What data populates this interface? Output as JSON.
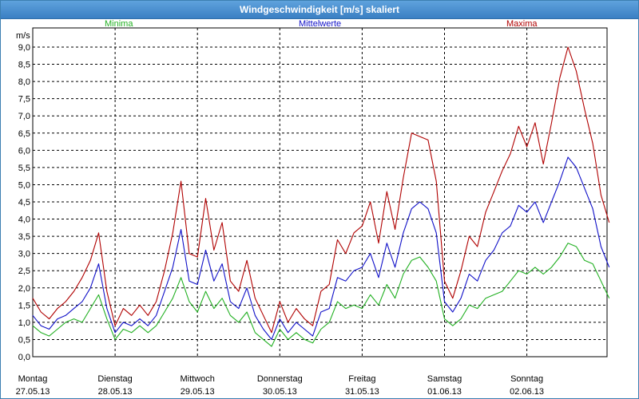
{
  "window": {
    "title": "Windgeschwindigkeit [m/s] skaliert"
  },
  "colors": {
    "minima": "#22b022",
    "mittelwerte": "#1010c8",
    "maxima": "#b00000",
    "grid": "#000000",
    "text": "#000000"
  },
  "chart_data": {
    "type": "line",
    "ylabel": "m/s",
    "ylim": [
      0,
      9.0
    ],
    "y_ticks": [
      "0,0",
      "0,5",
      "1,0",
      "1,5",
      "2,0",
      "2,5",
      "3,0",
      "3,5",
      "4,0",
      "4,5",
      "5,0",
      "5,5",
      "6,0",
      "6,5",
      "7,0",
      "7,5",
      "8,0",
      "8,5",
      "9,0"
    ],
    "x_days": [
      {
        "day": "Montag",
        "date": "27.05.13"
      },
      {
        "day": "Dienstag",
        "date": "28.05.13"
      },
      {
        "day": "Mittwoch",
        "date": "29.05.13"
      },
      {
        "day": "Donnerstag",
        "date": "30.05.13"
      },
      {
        "day": "Freitag",
        "date": "31.05.13"
      },
      {
        "day": "Samstag",
        "date": "01.06.13"
      },
      {
        "day": "Sonntag",
        "date": "02.06.13"
      }
    ],
    "x_unit": "day index (0 = 27.05.13 00:00)",
    "grid": true,
    "series": [
      {
        "name": "Minima",
        "color_key": "minima",
        "x": [
          0,
          0.1,
          0.2,
          0.3,
          0.4,
          0.5,
          0.6,
          0.7,
          0.8,
          0.9,
          1.0,
          1.1,
          1.2,
          1.3,
          1.4,
          1.5,
          1.6,
          1.7,
          1.8,
          1.9,
          2.0,
          2.1,
          2.2,
          2.3,
          2.4,
          2.5,
          2.6,
          2.7,
          2.8,
          2.9,
          3.0,
          3.1,
          3.2,
          3.3,
          3.4,
          3.5,
          3.6,
          3.7,
          3.8,
          3.9,
          4.0,
          4.1,
          4.2,
          4.3,
          4.4,
          4.5,
          4.6,
          4.7,
          4.8,
          4.9,
          5.0,
          5.1,
          5.2,
          5.3,
          5.4,
          5.5,
          5.6,
          5.7,
          5.8,
          5.9,
          6.0,
          6.1,
          6.2,
          6.3,
          6.4,
          6.5,
          6.6,
          6.7,
          6.8,
          6.9,
          7.0
        ],
        "y": [
          0.9,
          0.7,
          0.6,
          0.8,
          1.0,
          1.1,
          1.0,
          1.4,
          1.8,
          1.1,
          0.5,
          0.8,
          0.7,
          0.9,
          0.7,
          0.9,
          1.3,
          1.7,
          2.3,
          1.6,
          1.3,
          1.9,
          1.4,
          1.7,
          1.2,
          1.0,
          1.3,
          0.7,
          0.5,
          0.3,
          0.8,
          0.5,
          0.7,
          0.5,
          0.4,
          0.8,
          1.0,
          1.6,
          1.4,
          1.5,
          1.4,
          1.8,
          1.5,
          2.1,
          1.7,
          2.4,
          2.8,
          2.9,
          2.6,
          2.2,
          1.1,
          0.9,
          1.1,
          1.5,
          1.4,
          1.7,
          1.8,
          1.9,
          2.2,
          2.5,
          2.4,
          2.6,
          2.4,
          2.6,
          2.9,
          3.3,
          3.2,
          2.8,
          2.7,
          2.2,
          1.7
        ]
      },
      {
        "name": "Mittelwerte",
        "color_key": "mittelwerte",
        "x": [
          0,
          0.1,
          0.2,
          0.3,
          0.4,
          0.5,
          0.6,
          0.7,
          0.8,
          0.9,
          1.0,
          1.1,
          1.2,
          1.3,
          1.4,
          1.5,
          1.6,
          1.7,
          1.8,
          1.9,
          2.0,
          2.1,
          2.2,
          2.3,
          2.4,
          2.5,
          2.6,
          2.7,
          2.8,
          2.9,
          3.0,
          3.1,
          3.2,
          3.3,
          3.4,
          3.5,
          3.6,
          3.7,
          3.8,
          3.9,
          4.0,
          4.1,
          4.2,
          4.3,
          4.4,
          4.5,
          4.6,
          4.7,
          4.8,
          4.9,
          5.0,
          5.1,
          5.2,
          5.3,
          5.4,
          5.5,
          5.6,
          5.7,
          5.8,
          5.9,
          6.0,
          6.1,
          6.2,
          6.3,
          6.4,
          6.5,
          6.6,
          6.7,
          6.8,
          6.9,
          7.0
        ],
        "y": [
          1.2,
          0.9,
          0.8,
          1.1,
          1.2,
          1.4,
          1.6,
          2.0,
          2.7,
          1.4,
          0.7,
          1.0,
          0.9,
          1.1,
          0.9,
          1.2,
          1.9,
          2.6,
          3.7,
          2.2,
          2.1,
          3.1,
          2.2,
          2.7,
          1.6,
          1.4,
          2.0,
          1.2,
          0.8,
          0.5,
          1.1,
          0.7,
          1.0,
          0.8,
          0.6,
          1.3,
          1.4,
          2.3,
          2.2,
          2.5,
          2.6,
          3.0,
          2.3,
          3.3,
          2.6,
          3.6,
          4.3,
          4.5,
          4.3,
          3.6,
          1.6,
          1.3,
          1.7,
          2.4,
          2.2,
          2.8,
          3.1,
          3.6,
          3.8,
          4.4,
          4.2,
          4.5,
          3.9,
          4.5,
          5.1,
          5.8,
          5.5,
          4.9,
          4.3,
          3.2,
          2.6
        ]
      },
      {
        "name": "Maxima",
        "color_key": "maxima",
        "x": [
          0,
          0.1,
          0.2,
          0.3,
          0.4,
          0.5,
          0.6,
          0.7,
          0.8,
          0.9,
          1.0,
          1.1,
          1.2,
          1.3,
          1.4,
          1.5,
          1.6,
          1.7,
          1.8,
          1.9,
          2.0,
          2.1,
          2.2,
          2.3,
          2.4,
          2.5,
          2.6,
          2.7,
          2.8,
          2.9,
          3.0,
          3.1,
          3.2,
          3.3,
          3.4,
          3.5,
          3.6,
          3.7,
          3.8,
          3.9,
          4.0,
          4.1,
          4.2,
          4.3,
          4.4,
          4.5,
          4.6,
          4.7,
          4.8,
          4.9,
          5.0,
          5.1,
          5.2,
          5.3,
          5.4,
          5.5,
          5.6,
          5.7,
          5.8,
          5.9,
          6.0,
          6.1,
          6.2,
          6.3,
          6.4,
          6.5,
          6.6,
          6.7,
          6.8,
          6.9,
          7.0
        ],
        "y": [
          1.7,
          1.3,
          1.1,
          1.4,
          1.6,
          1.9,
          2.3,
          2.8,
          3.6,
          1.9,
          0.9,
          1.4,
          1.2,
          1.5,
          1.2,
          1.6,
          2.5,
          3.6,
          5.1,
          3.0,
          2.9,
          4.6,
          3.1,
          3.9,
          2.2,
          1.9,
          2.8,
          1.7,
          1.2,
          0.7,
          1.6,
          1.0,
          1.4,
          1.1,
          0.9,
          1.9,
          2.1,
          3.4,
          3.0,
          3.6,
          3.8,
          4.5,
          3.3,
          4.8,
          3.7,
          5.2,
          6.5,
          6.4,
          6.3,
          5.1,
          2.2,
          1.7,
          2.5,
          3.5,
          3.2,
          4.2,
          4.8,
          5.4,
          5.9,
          6.7,
          6.1,
          6.8,
          5.6,
          6.8,
          8.1,
          9.0,
          8.3,
          7.2,
          6.2,
          4.7,
          3.9
        ]
      }
    ]
  }
}
